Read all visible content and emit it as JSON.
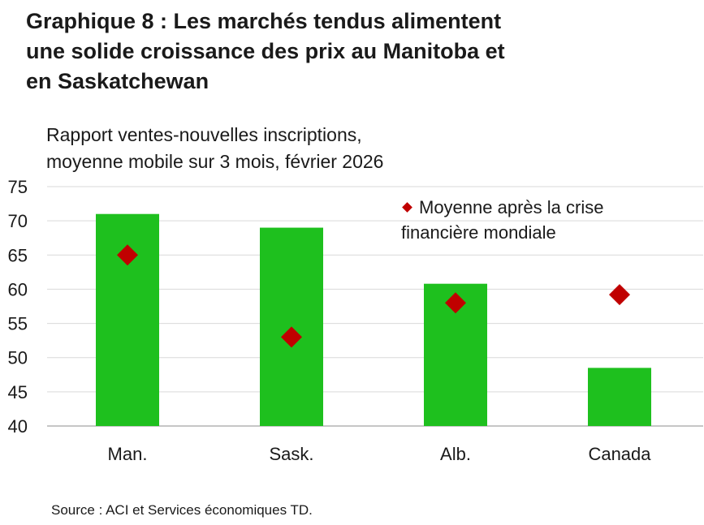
{
  "title_lines": [
    "Graphique 8 : Les marchés tendus alimentent",
    "une solide croissance des prix au Manitoba et",
    "en Saskatchewan"
  ],
  "subtitle_lines": [
    "Rapport ventes-nouvelles inscriptions,",
    "moyenne mobile sur 3 mois, février 2026"
  ],
  "source": "Source : ACI et Services économiques TD.",
  "legend": {
    "lines": [
      "Moyenne après la crise",
      "financière mondiale"
    ],
    "marker_color": "#c00000"
  },
  "colors": {
    "bar": "#1ec01e",
    "marker": "#c00000"
  },
  "chart_data": {
    "type": "bar",
    "categories": [
      "Man.",
      "Sask.",
      "Alb.",
      "Canada"
    ],
    "series": [
      {
        "values": [
          71,
          69,
          60.8,
          48.5
        ],
        "color": "#1ec01e"
      },
      {
        "name": "Moyenne après la crise financière mondiale",
        "values": [
          65,
          53,
          58,
          59.2
        ],
        "marker": "diamond",
        "color": "#c00000"
      }
    ],
    "ylim": [
      40,
      75
    ],
    "yticks": [
      40,
      45,
      50,
      55,
      60,
      65,
      70,
      75
    ],
    "grid": true,
    "legend_position": "top-right"
  }
}
